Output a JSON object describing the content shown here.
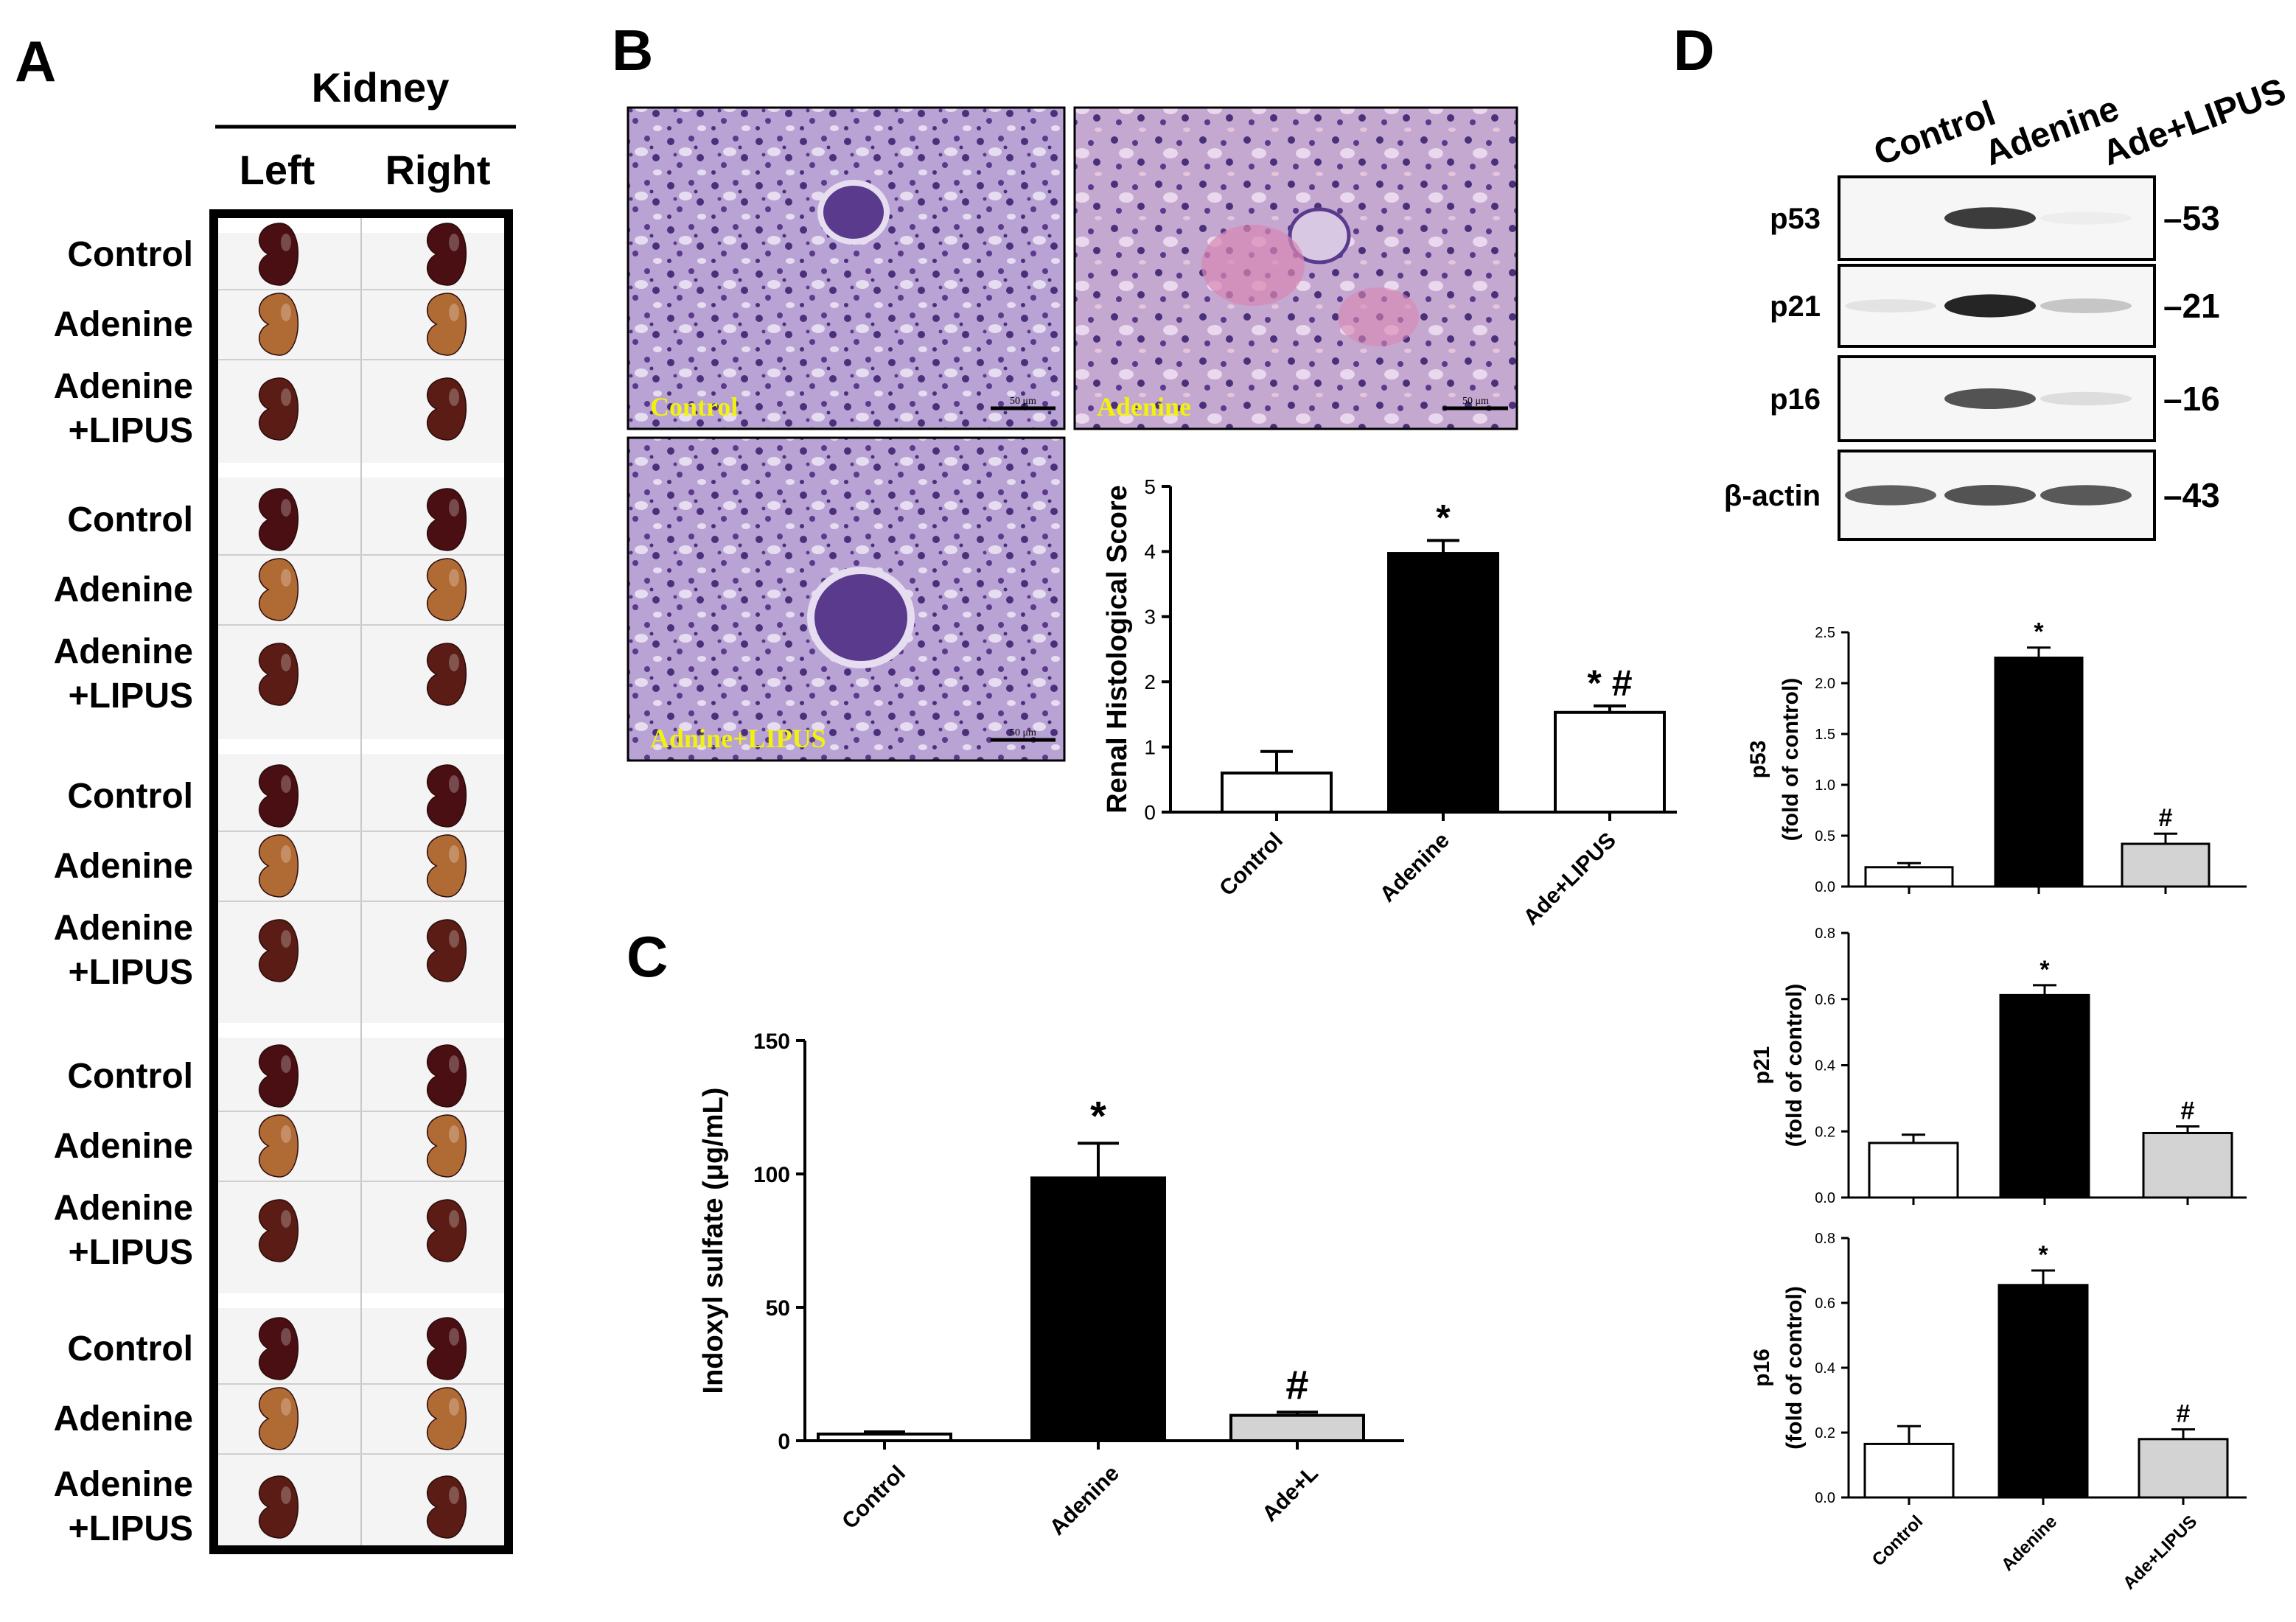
{
  "panels": {
    "A": "A",
    "B": "B",
    "C": "C",
    "D": "D"
  },
  "panelA": {
    "header": "Kidney",
    "columns": [
      "Left",
      "Right"
    ],
    "rows": [
      "Control",
      "Adenine",
      "Adenine\n+LIPUS",
      "Control",
      "Adenine",
      "Adenine\n+LIPUS",
      "Control",
      "Adenine",
      "Adenine\n+LIPUS",
      "Control",
      "Adenine",
      "Adenine\n+LIPUS",
      "Control",
      "Adenine",
      "Adenine\n+LIPUS"
    ],
    "kidney_colors": {
      "control": "#4a0f12",
      "adenine": "#b06a34",
      "lipus": "#5a1c14"
    }
  },
  "panelB": {
    "images": [
      {
        "label": "Control",
        "scale": "50 μm"
      },
      {
        "label": "Adenine",
        "scale": "50 μm"
      },
      {
        "label": "Adnine+LIPUS",
        "scale": "50 μm"
      }
    ]
  },
  "chart_data": [
    {
      "id": "B",
      "type": "bar",
      "categories": [
        "Control",
        "Adenine",
        "Ade+LIPUS"
      ],
      "values": [
        0.6,
        3.97,
        1.53
      ],
      "errors": [
        0.33,
        0.2,
        0.1
      ],
      "fills": [
        "#ffffff",
        "#000000",
        "#ffffff"
      ],
      "annotations": [
        "",
        "*",
        "* #"
      ],
      "ylabel": "Renal Histological Score",
      "ylim": [
        0,
        5
      ],
      "yticks": [
        "0",
        "1",
        "2",
        "3",
        "4",
        "5"
      ]
    },
    {
      "id": "C",
      "type": "bar",
      "categories": [
        "Control",
        "Adenine",
        "Ade+L"
      ],
      "values": [
        2.5,
        98.5,
        9.5
      ],
      "errors": [
        0.8,
        13,
        1.2
      ],
      "fills": [
        "#ffffff",
        "#000000",
        "#d3d3d3"
      ],
      "annotations": [
        "",
        "*",
        "#"
      ],
      "ylabel": "Indoxyl sulfate (μg/mL)",
      "ylim": [
        0,
        150
      ],
      "yticks": [
        "0",
        "50",
        "100",
        "150"
      ]
    },
    {
      "id": "D-p53",
      "type": "bar",
      "categories": [
        "Control",
        "Adenine",
        "Ade+LIPUS"
      ],
      "values": [
        0.19,
        2.25,
        0.42
      ],
      "errors": [
        0.04,
        0.1,
        0.1
      ],
      "fills": [
        "#ffffff",
        "#000000",
        "#d3d3d3"
      ],
      "annotations": [
        "",
        "*",
        "#"
      ],
      "ylabel": [
        "p53",
        "(fold of control)"
      ],
      "ylim": [
        0,
        2.5
      ],
      "yticks": [
        "0.0",
        "0.5",
        "1.0",
        "1.5",
        "2.0",
        "2.5"
      ]
    },
    {
      "id": "D-p21",
      "type": "bar",
      "categories": [
        "Control",
        "Adenine",
        "Ade+LIPUS"
      ],
      "values": [
        0.165,
        0.612,
        0.195
      ],
      "errors": [
        0.025,
        0.03,
        0.02
      ],
      "fills": [
        "#ffffff",
        "#000000",
        "#d3d3d3"
      ],
      "annotations": [
        "",
        "*",
        "#"
      ],
      "ylabel": [
        "p21",
        "(fold of control)"
      ],
      "ylim": [
        0,
        0.8
      ],
      "yticks": [
        "0.0",
        "0.2",
        "0.4",
        "0.6",
        "0.8"
      ]
    },
    {
      "id": "D-p16",
      "type": "bar",
      "categories": [
        "Control",
        "Adenine",
        "Ade+LIPUS"
      ],
      "values": [
        0.165,
        0.655,
        0.18
      ],
      "errors": [
        0.055,
        0.045,
        0.03
      ],
      "fills": [
        "#ffffff",
        "#000000",
        "#d3d3d3"
      ],
      "annotations": [
        "",
        "*",
        "#"
      ],
      "ylabel": [
        "p16",
        "(fold of control)"
      ],
      "ylim": [
        0,
        0.8
      ],
      "yticks": [
        "0.0",
        "0.2",
        "0.4",
        "0.6",
        "0.8"
      ]
    }
  ],
  "panelD": {
    "lanes": [
      "Control",
      "Adenine",
      "Ade+LIPUS"
    ],
    "blots": [
      {
        "protein": "p53",
        "mw": "53",
        "intensity": [
          0.0,
          0.85,
          0.08
        ]
      },
      {
        "protein": "p21",
        "mw": "21",
        "intensity": [
          0.12,
          0.95,
          0.25
        ]
      },
      {
        "protein": "p16",
        "mw": "16",
        "intensity": [
          0.0,
          0.75,
          0.15
        ]
      },
      {
        "protein": "β-actin",
        "mw": "43",
        "intensity": [
          0.7,
          0.75,
          0.72
        ]
      }
    ]
  }
}
